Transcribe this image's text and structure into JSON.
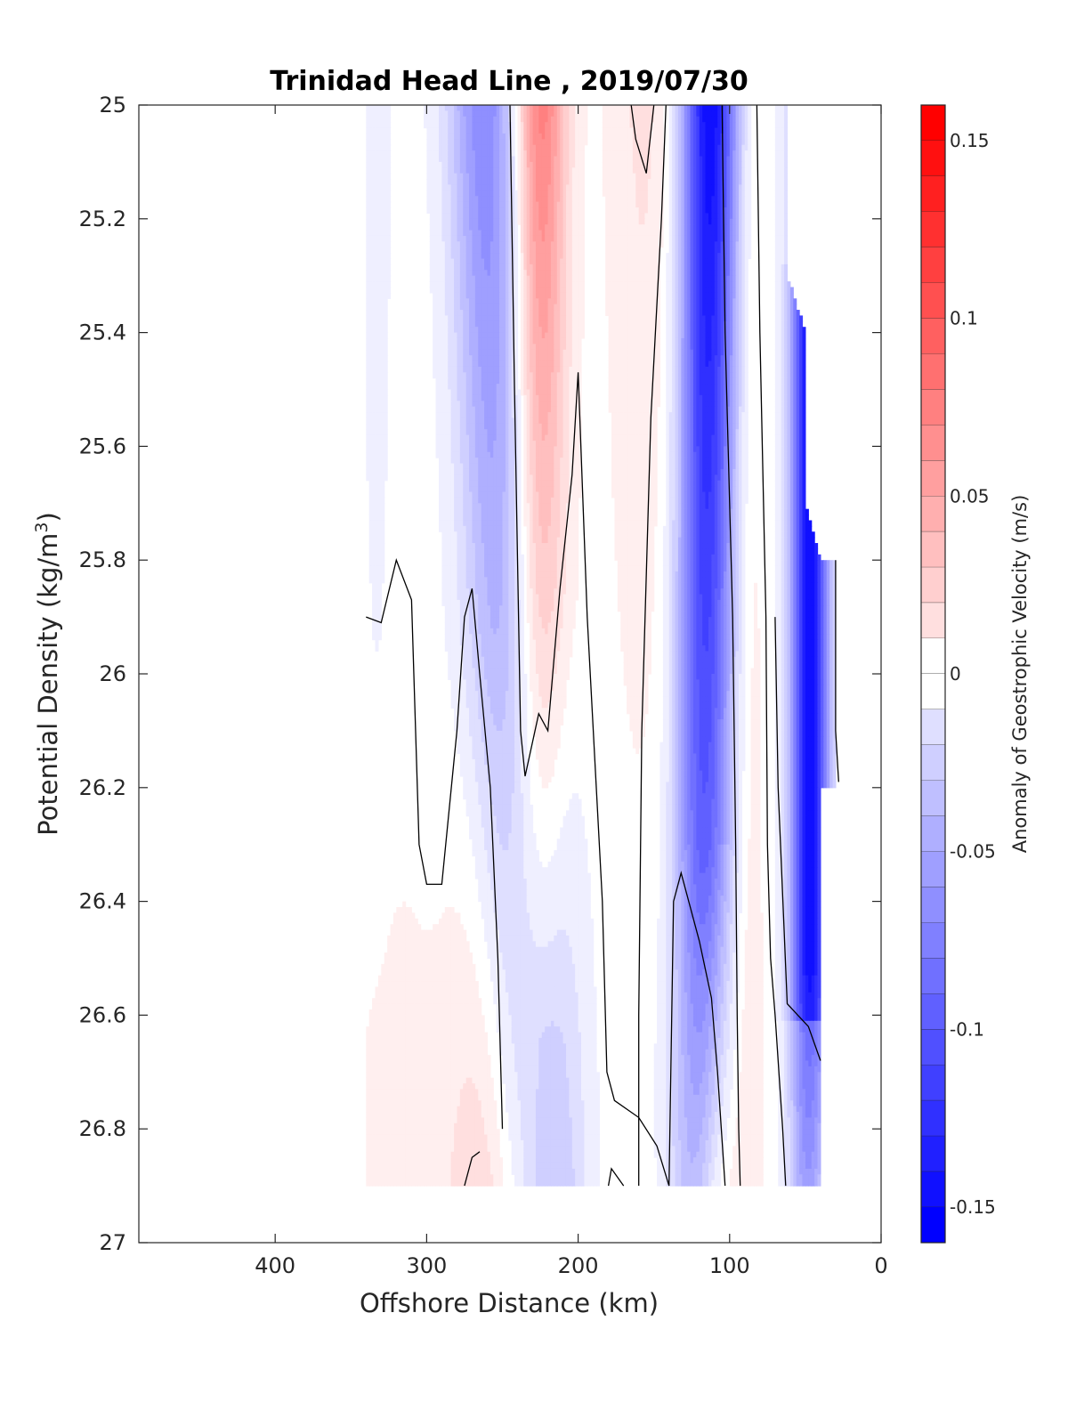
{
  "chart_data": {
    "type": "heatmap",
    "subtype": "filled-contour-section",
    "title": "Trinidad Head Line , 2019/07/30",
    "xlabel": "Offshore Distance (km)",
    "ylabel_prefix": "Potential Density (kg/m",
    "ylabel_sup": "3",
    "ylabel_suffix": ")",
    "x_reversed": true,
    "y_reversed": true,
    "xlim": [
      490,
      0
    ],
    "ylim": [
      25,
      27
    ],
    "x_ticks": [
      400,
      300,
      200,
      100,
      0
    ],
    "y_ticks": [
      25,
      25.2,
      25.4,
      25.6,
      25.8,
      26,
      26.2,
      26.4,
      26.6,
      26.8,
      27
    ],
    "x_tick_labels": [
      "400",
      "300",
      "200",
      "100",
      "0"
    ],
    "y_tick_labels": [
      "25",
      "25.2",
      "25.4",
      "25.6",
      "25.8",
      "26",
      "26.2",
      "26.4",
      "26.6",
      "26.8",
      "27"
    ],
    "colorbar": {
      "label": "Anomaly of Geostrophic Velocity (m/s)",
      "range": [
        -0.16,
        0.16
      ],
      "step": 0.01,
      "ticks": [
        0.15,
        0.1,
        0.05,
        0,
        -0.05,
        -0.1,
        -0.15
      ],
      "tick_labels": [
        "0.15",
        "0.1",
        "0.05",
        "0",
        "-0.05",
        "-0.1",
        "-0.15"
      ],
      "colormap": "blue-white-red",
      "low_color": "#0000ff",
      "high_color": "#ff0000"
    },
    "grid": {
      "x": [
        340,
        330,
        320,
        310,
        300,
        290,
        280,
        270,
        260,
        250,
        240,
        230,
        220,
        210,
        200,
        190,
        180,
        170,
        160,
        150,
        140,
        130,
        120,
        110,
        100,
        90,
        80,
        70,
        60,
        50,
        40,
        30
      ],
      "y": [
        25.0,
        25.2,
        25.4,
        25.6,
        25.8,
        26.0,
        26.2,
        26.4,
        26.6,
        26.8,
        26.9
      ]
    },
    "zero_contour_lines": [
      [
        [
          340,
          25.9
        ],
        [
          330,
          25.91
        ],
        [
          320,
          25.8
        ],
        [
          310,
          25.87
        ],
        [
          305,
          26.3
        ],
        [
          300,
          26.37
        ],
        [
          290,
          26.37
        ],
        [
          280,
          26.1
        ],
        [
          275,
          25.9
        ],
        [
          270,
          25.85
        ],
        [
          265,
          26.0
        ],
        [
          258,
          26.2
        ],
        [
          253,
          26.5
        ],
        [
          250,
          26.8
        ]
      ],
      [
        [
          245,
          25.0
        ],
        [
          242,
          25.5
        ],
        [
          238,
          26.1
        ],
        [
          235,
          26.18
        ],
        [
          226,
          26.07
        ],
        [
          220,
          26.1
        ],
        [
          212,
          25.85
        ],
        [
          204,
          25.65
        ],
        [
          200,
          25.47
        ],
        [
          194,
          25.9
        ],
        [
          188,
          26.2
        ],
        [
          184,
          26.4
        ],
        [
          181,
          26.7
        ],
        [
          176,
          26.75
        ],
        [
          160,
          26.78
        ],
        [
          148,
          26.83
        ],
        [
          140,
          26.9
        ]
      ],
      [
        [
          165,
          25.0
        ],
        [
          162,
          25.06
        ],
        [
          155,
          25.12
        ],
        [
          150,
          25.0
        ]
      ],
      [
        [
          275,
          26.9
        ],
        [
          270,
          26.85
        ],
        [
          265,
          26.84
        ]
      ],
      [
        [
          180,
          26.9
        ],
        [
          178,
          26.87
        ],
        [
          170,
          26.9
        ]
      ],
      [
        [
          160,
          26.9
        ],
        [
          160,
          26.6
        ],
        [
          158,
          26.1
        ],
        [
          152,
          25.55
        ],
        [
          145,
          25.2
        ],
        [
          142,
          25.0
        ]
      ],
      [
        [
          140,
          26.9
        ],
        [
          137,
          26.4
        ],
        [
          132,
          26.35
        ],
        [
          120,
          26.47
        ],
        [
          112,
          26.57
        ],
        [
          108,
          26.7
        ],
        [
          103,
          26.9
        ]
      ],
      [
        [
          105,
          25.0
        ],
        [
          103,
          25.4
        ],
        [
          98,
          25.9
        ],
        [
          96,
          26.3
        ],
        [
          95,
          26.6
        ],
        [
          94,
          26.8
        ],
        [
          93,
          26.9
        ]
      ],
      [
        [
          82,
          25.0
        ],
        [
          80,
          25.4
        ],
        [
          76,
          25.9
        ],
        [
          75,
          26.3
        ],
        [
          73,
          26.5
        ],
        [
          70,
          26.6
        ],
        [
          65,
          26.8
        ],
        [
          63,
          26.9
        ]
      ],
      [
        [
          30,
          25.8
        ],
        [
          30,
          26.1
        ],
        [
          28,
          26.19
        ]
      ],
      [
        [
          40,
          26.68
        ],
        [
          48,
          26.62
        ],
        [
          55,
          26.6
        ],
        [
          62,
          26.58
        ],
        [
          68,
          26.2
        ],
        [
          70,
          25.9
        ]
      ]
    ]
  }
}
